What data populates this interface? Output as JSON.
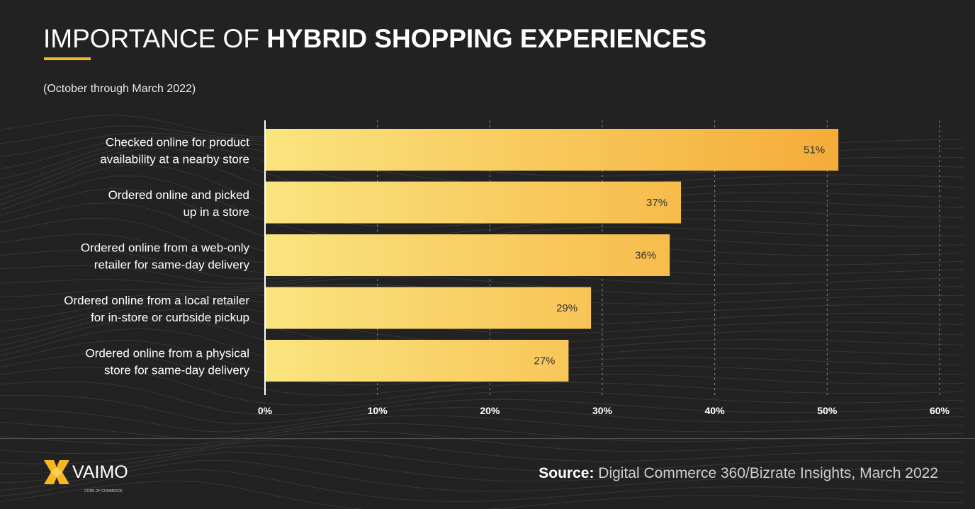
{
  "title": {
    "light": "IMPORTANCE OF ",
    "bold": "HYBRID SHOPPING EXPERIENCES"
  },
  "subtitle": "(October through March 2022)",
  "colors": {
    "background": "#222222",
    "bar_start": "#fae47f",
    "bar_end": "#f5ac38",
    "accent": "#f6b81f"
  },
  "chart_data": {
    "type": "bar",
    "orientation": "horizontal",
    "categories": [
      [
        "Checked online for product",
        "availability at a nearby store"
      ],
      [
        "Ordered online and picked",
        "up in a store"
      ],
      [
        "Ordered online from a web-only",
        "retailer for same-day delivery"
      ],
      [
        "Ordered online from a local retailer",
        "for in-store or curbside pickup"
      ],
      [
        "Ordered online from a physical",
        "store for same-day delivery"
      ]
    ],
    "values": [
      51,
      37,
      36,
      29,
      27
    ],
    "data_labels": [
      "51%",
      "37%",
      "36%",
      "29%",
      "27%"
    ],
    "xlim": [
      0,
      60
    ],
    "xticks": [
      0,
      10,
      20,
      30,
      40,
      50,
      60
    ],
    "xtick_labels": [
      "0%",
      "10%",
      "20%",
      "30%",
      "40%",
      "50%",
      "60%"
    ],
    "grid": "vertical dashed"
  },
  "footer": {
    "source_label": "Source:",
    "source_text": " Digital Commerce 360/Bizrate Insights, March 2022",
    "logo_text": "VAIMO",
    "logo_tagline": "CORE OF COMMERCE"
  }
}
